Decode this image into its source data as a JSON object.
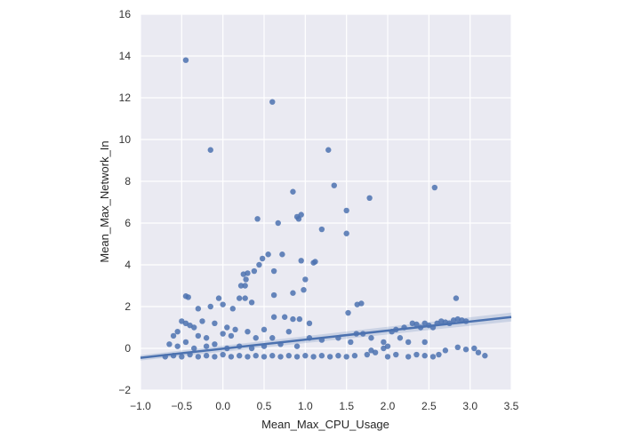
{
  "chart_data": {
    "type": "scatter",
    "title": "",
    "xlabel": "Mean_Max_CPU_Usage",
    "ylabel": "Mean_Max_Network_In",
    "xlim": [
      -1.0,
      3.5
    ],
    "ylim": [
      -2,
      16
    ],
    "xticks": [
      "-1.0",
      "-0.5",
      "0.0",
      "0.5",
      "1.0",
      "1.5",
      "2.0",
      "2.5",
      "3.0",
      "3.5"
    ],
    "yticks": [
      "-2",
      "0",
      "2",
      "4",
      "6",
      "8",
      "10",
      "12",
      "14",
      "16"
    ],
    "grid": true,
    "legend": null,
    "style": {
      "background": "#eaeaf2",
      "grid_color": "#ffffff",
      "point_color": "#4c72b0"
    },
    "regression_line": {
      "x": [
        -1.0,
        3.5
      ],
      "y": [
        -0.45,
        1.5
      ],
      "confidence_band": true
    },
    "points": [
      [
        -0.45,
        13.8
      ],
      [
        -0.15,
        9.5
      ],
      [
        0.6,
        11.8
      ],
      [
        1.28,
        9.5
      ],
      [
        1.35,
        7.8
      ],
      [
        0.85,
        7.5
      ],
      [
        1.78,
        7.2
      ],
      [
        2.57,
        7.7
      ],
      [
        1.5,
        6.6
      ],
      [
        0.42,
        6.2
      ],
      [
        0.9,
        6.3
      ],
      [
        0.95,
        6.4
      ],
      [
        0.92,
        6.2
      ],
      [
        0.67,
        6.0
      ],
      [
        1.5,
        5.5
      ],
      [
        1.2,
        5.7
      ],
      [
        0.55,
        4.5
      ],
      [
        0.48,
        4.3
      ],
      [
        0.72,
        4.5
      ],
      [
        0.95,
        4.2
      ],
      [
        1.1,
        4.1
      ],
      [
        1.12,
        4.15
      ],
      [
        0.44,
        4.0
      ],
      [
        0.38,
        3.7
      ],
      [
        0.62,
        3.7
      ],
      [
        0.3,
        3.6
      ],
      [
        0.25,
        3.55
      ],
      [
        0.28,
        3.3
      ],
      [
        1.0,
        3.3
      ],
      [
        0.27,
        3.0
      ],
      [
        0.22,
        3.0
      ],
      [
        0.98,
        2.8
      ],
      [
        0.85,
        2.65
      ],
      [
        0.62,
        2.55
      ],
      [
        -0.45,
        2.5
      ],
      [
        -0.42,
        2.45
      ],
      [
        -0.05,
        2.4
      ],
      [
        0.2,
        2.4
      ],
      [
        0.27,
        2.4
      ],
      [
        2.83,
        2.4
      ],
      [
        0.35,
        2.2
      ],
      [
        -0.3,
        1.9
      ],
      [
        -0.15,
        2.0
      ],
      [
        0.0,
        2.1
      ],
      [
        1.63,
        2.1
      ],
      [
        1.68,
        2.15
      ],
      [
        0.12,
        1.9
      ],
      [
        1.52,
        1.7
      ],
      [
        -0.5,
        1.3
      ],
      [
        -0.45,
        1.2
      ],
      [
        -0.4,
        1.1
      ],
      [
        -0.35,
        1.0
      ],
      [
        -0.25,
        1.3
      ],
      [
        -0.1,
        1.2
      ],
      [
        0.05,
        1.0
      ],
      [
        0.15,
        0.9
      ],
      [
        -0.55,
        0.8
      ],
      [
        -0.6,
        0.6
      ],
      [
        -0.3,
        0.6
      ],
      [
        -0.2,
        0.5
      ],
      [
        0.0,
        0.7
      ],
      [
        0.1,
        0.6
      ],
      [
        0.3,
        0.8
      ],
      [
        0.5,
        0.9
      ],
      [
        0.4,
        0.5
      ],
      [
        0.62,
        1.5
      ],
      [
        0.75,
        1.5
      ],
      [
        0.85,
        1.4
      ],
      [
        0.93,
        1.4
      ],
      [
        1.05,
        1.2
      ],
      [
        0.8,
        0.8
      ],
      [
        0.6,
        0.5
      ],
      [
        -0.65,
        0.2
      ],
      [
        -0.55,
        0.1
      ],
      [
        -0.45,
        0.3
      ],
      [
        -0.35,
        0.0
      ],
      [
        -0.2,
        0.1
      ],
      [
        -0.1,
        0.2
      ],
      [
        0.05,
        0.0
      ],
      [
        0.2,
        0.1
      ],
      [
        0.35,
        0.0
      ],
      [
        0.5,
        0.1
      ],
      [
        0.7,
        0.2
      ],
      [
        0.9,
        0.1
      ],
      [
        1.05,
        0.5
      ],
      [
        1.2,
        0.4
      ],
      [
        1.4,
        0.5
      ],
      [
        1.55,
        0.3
      ],
      [
        1.62,
        0.7
      ],
      [
        1.7,
        0.7
      ],
      [
        1.8,
        0.5
      ],
      [
        1.95,
        0.3
      ],
      [
        2.05,
        0.8
      ],
      [
        2.1,
        0.9
      ],
      [
        2.2,
        1.0
      ],
      [
        2.3,
        1.2
      ],
      [
        2.35,
        1.15
      ],
      [
        2.4,
        1.0
      ],
      [
        2.5,
        1.1
      ],
      [
        2.6,
        1.2
      ],
      [
        2.65,
        1.3
      ],
      [
        2.7,
        1.25
      ],
      [
        2.8,
        1.35
      ],
      [
        2.85,
        1.4
      ],
      [
        2.9,
        1.35
      ],
      [
        2.95,
        1.3
      ],
      [
        2.45,
        1.2
      ],
      [
        2.55,
        1.0
      ],
      [
        2.75,
        1.2
      ],
      [
        2.15,
        0.5
      ],
      [
        2.25,
        0.3
      ],
      [
        2.45,
        0.3
      ],
      [
        -0.7,
        -0.4
      ],
      [
        -0.6,
        -0.35
      ],
      [
        -0.5,
        -0.4
      ],
      [
        -0.4,
        -0.3
      ],
      [
        -0.3,
        -0.4
      ],
      [
        -0.2,
        -0.35
      ],
      [
        -0.1,
        -0.4
      ],
      [
        0.0,
        -0.3
      ],
      [
        0.1,
        -0.4
      ],
      [
        0.2,
        -0.35
      ],
      [
        0.3,
        -0.4
      ],
      [
        0.4,
        -0.35
      ],
      [
        0.5,
        -0.4
      ],
      [
        0.6,
        -0.35
      ],
      [
        0.7,
        -0.4
      ],
      [
        0.8,
        -0.35
      ],
      [
        0.9,
        -0.4
      ],
      [
        1.0,
        -0.35
      ],
      [
        1.1,
        -0.4
      ],
      [
        1.2,
        -0.35
      ],
      [
        1.3,
        -0.4
      ],
      [
        1.4,
        -0.35
      ],
      [
        1.5,
        -0.4
      ],
      [
        1.6,
        -0.35
      ],
      [
        1.75,
        -0.3
      ],
      [
        1.85,
        -0.2
      ],
      [
        2.0,
        -0.4
      ],
      [
        2.1,
        -0.3
      ],
      [
        2.25,
        -0.4
      ],
      [
        2.35,
        -0.3
      ],
      [
        2.45,
        -0.35
      ],
      [
        2.55,
        -0.4
      ],
      [
        2.62,
        -0.3
      ],
      [
        2.7,
        -0.1
      ],
      [
        2.85,
        0.05
      ],
      [
        2.95,
        -0.05
      ],
      [
        3.05,
        0.0
      ],
      [
        3.1,
        -0.2
      ],
      [
        3.18,
        -0.35
      ],
      [
        1.95,
        0.0
      ],
      [
        2.0,
        0.1
      ],
      [
        1.8,
        -0.1
      ]
    ]
  }
}
